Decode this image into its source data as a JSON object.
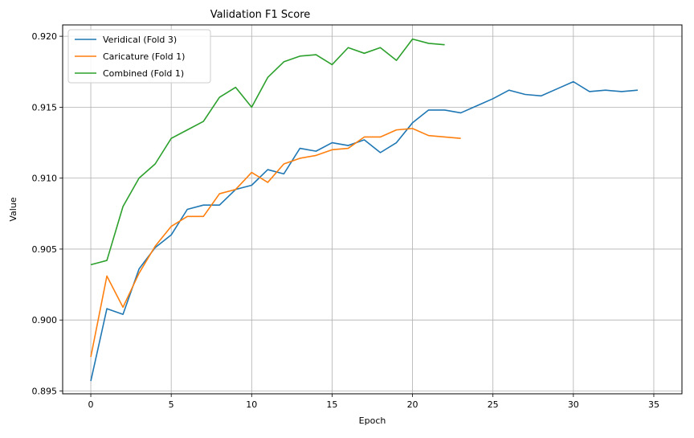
{
  "chart_data": {
    "type": "line",
    "title": "Validation F1 Score",
    "xlabel": "Epoch",
    "ylabel": "Value",
    "xlim": [
      -1.75,
      36.75
    ],
    "ylim": [
      0.8948,
      0.9208
    ],
    "xticks": [
      0,
      5,
      10,
      15,
      20,
      25,
      30,
      35
    ],
    "xtick_labels": [
      "0",
      "5",
      "10",
      "15",
      "20",
      "25",
      "30",
      "35"
    ],
    "yticks": [
      0.895,
      0.9,
      0.905,
      0.91,
      0.915,
      0.92
    ],
    "ytick_labels": [
      "0.895",
      "0.900",
      "0.905",
      "0.910",
      "0.915",
      "0.920"
    ],
    "grid": true,
    "legend_position": "top-left",
    "series": [
      {
        "name": "Veridical (Fold 3)",
        "color": "#1f77b4",
        "x": [
          0,
          1,
          2,
          3,
          4,
          5,
          6,
          7,
          8,
          9,
          10,
          11,
          12,
          13,
          14,
          15,
          16,
          17,
          18,
          19,
          20,
          21,
          22,
          23,
          24,
          25,
          26,
          27,
          28,
          29,
          30,
          31,
          32,
          33,
          34
        ],
        "values": [
          0.8957,
          0.9008,
          0.9004,
          0.9036,
          0.9051,
          0.906,
          0.9078,
          0.9081,
          0.9081,
          0.9092,
          0.9095,
          0.9106,
          0.9103,
          0.9121,
          0.9119,
          0.9125,
          0.9123,
          0.9127,
          0.9118,
          0.9125,
          0.9139,
          0.9148,
          0.9148,
          0.9146,
          0.9151,
          0.9156,
          0.9162,
          0.9159,
          0.9158,
          0.9163,
          0.9168,
          0.9161,
          0.9162,
          0.9161,
          0.9162
        ]
      },
      {
        "name": "Caricature (Fold 1)",
        "color": "#ff7f0e",
        "x": [
          0,
          1,
          2,
          3,
          4,
          5,
          6,
          7,
          8,
          9,
          10,
          11,
          12,
          13,
          14,
          15,
          16,
          17,
          18,
          19,
          20,
          21,
          22,
          23
        ],
        "values": [
          0.8974,
          0.9031,
          0.9009,
          0.9033,
          0.9052,
          0.9066,
          0.9073,
          0.9073,
          0.9089,
          0.9092,
          0.9104,
          0.9097,
          0.911,
          0.9114,
          0.9116,
          0.912,
          0.9121,
          0.9129,
          0.9129,
          0.9134,
          0.9135,
          0.913,
          0.9129,
          0.9128
        ]
      },
      {
        "name": "Combined (Fold 1)",
        "color": "#2ca02c",
        "x": [
          0,
          1,
          2,
          3,
          4,
          5,
          6,
          7,
          8,
          9,
          10,
          11,
          12,
          13,
          14,
          15,
          16,
          17,
          18,
          19,
          20,
          21,
          22
        ],
        "values": [
          0.9039,
          0.9042,
          0.908,
          0.91,
          0.911,
          0.9128,
          0.9134,
          0.914,
          0.9157,
          0.9164,
          0.915,
          0.9171,
          0.9182,
          0.9186,
          0.9187,
          0.918,
          0.9192,
          0.9188,
          0.9192,
          0.9183,
          0.9198,
          0.9195,
          0.9194
        ]
      }
    ]
  }
}
